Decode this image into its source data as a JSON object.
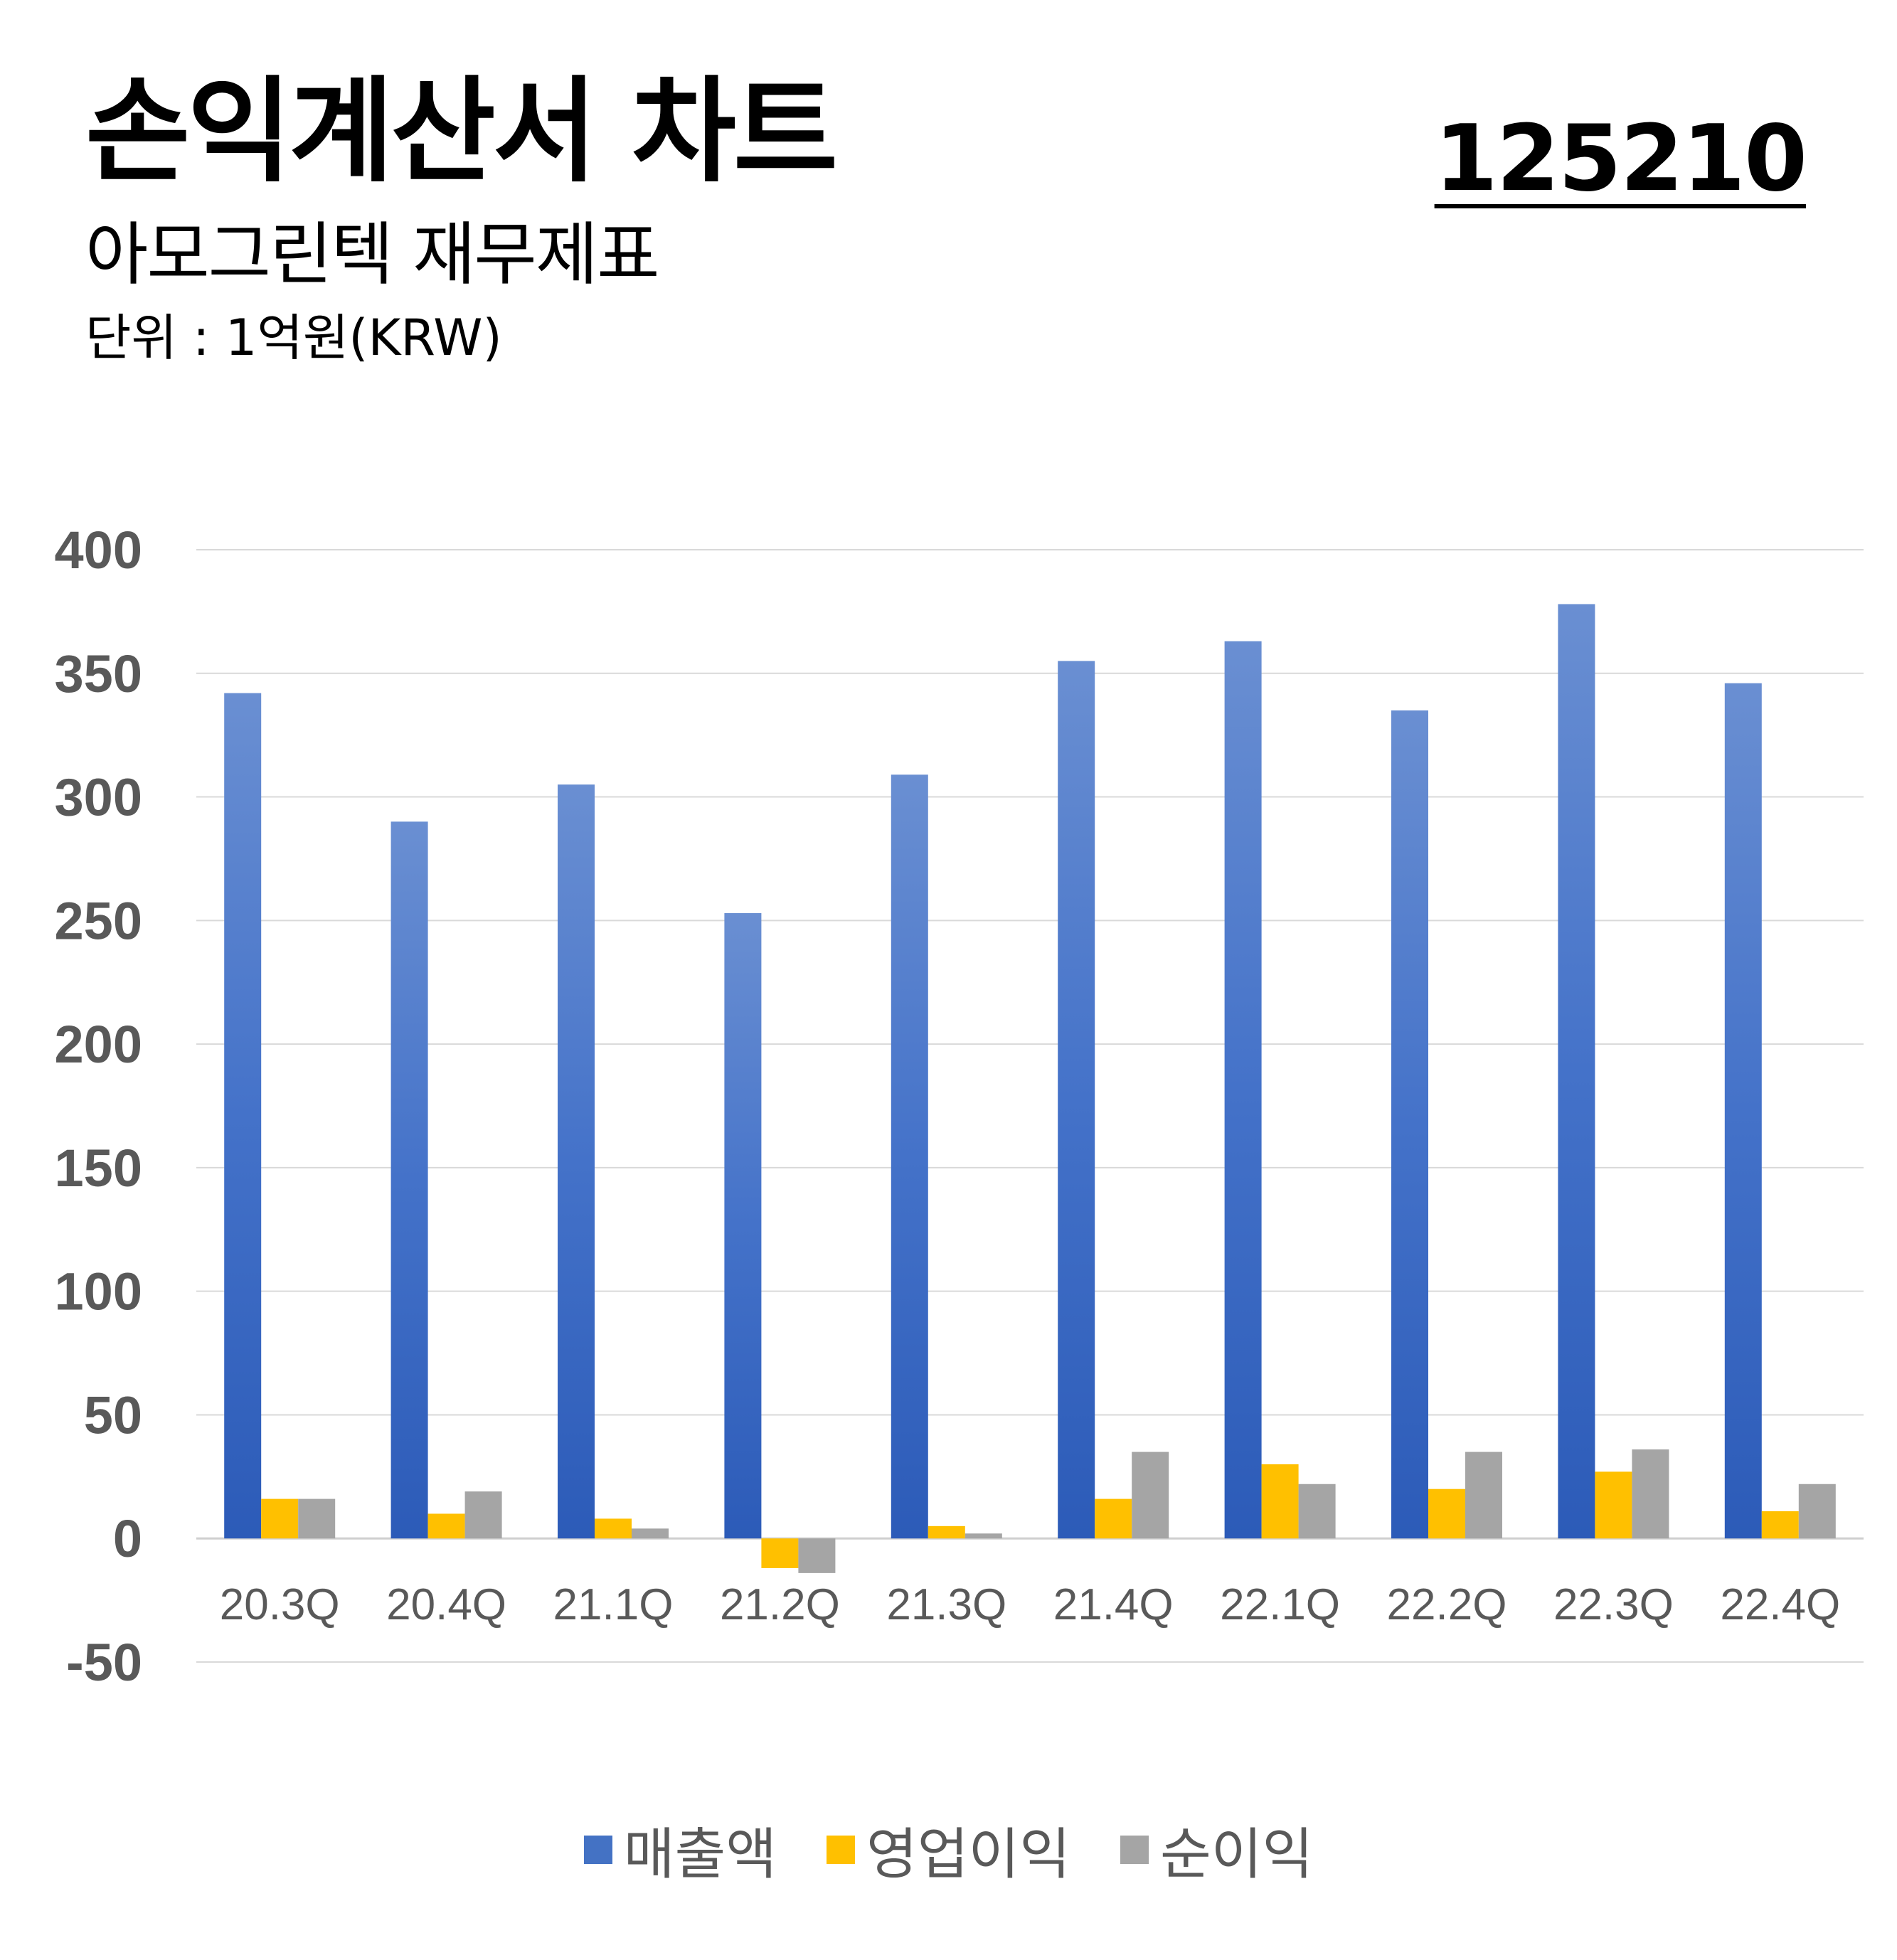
{
  "header": {
    "title": "손익계산서 차트",
    "code": "125210",
    "subtitle": "아모그린텍 재무제표",
    "unit": "단위 : 1억원(KRW)"
  },
  "colors": {
    "revenue": "#4472c4",
    "operating": "#ffc000",
    "net": "#a5a5a5",
    "grid": "#d9d9d9",
    "axis_text": "#595959"
  },
  "chart_data": {
    "type": "bar",
    "categories": [
      "20.3Q",
      "20.4Q",
      "21.1Q",
      "21.2Q",
      "21.3Q",
      "21.4Q",
      "22.1Q",
      "22.2Q",
      "22.3Q",
      "22.4Q"
    ],
    "series": [
      {
        "name": "매출액",
        "values": [
          342,
          290,
          305,
          253,
          309,
          355,
          363,
          335,
          378,
          346
        ]
      },
      {
        "name": "영업이익",
        "values": [
          16,
          10,
          8,
          -12,
          5,
          16,
          30,
          20,
          27,
          11
        ]
      },
      {
        "name": "순이익",
        "values": [
          16,
          19,
          4,
          -14,
          2,
          35,
          22,
          35,
          36,
          22
        ]
      }
    ],
    "yticks": [
      "400",
      "350",
      "300",
      "250",
      "200",
      "150",
      "100",
      "50",
      "0",
      "-50"
    ],
    "ylim": [
      -50,
      400
    ],
    "grid": true,
    "legend": "bottom"
  }
}
